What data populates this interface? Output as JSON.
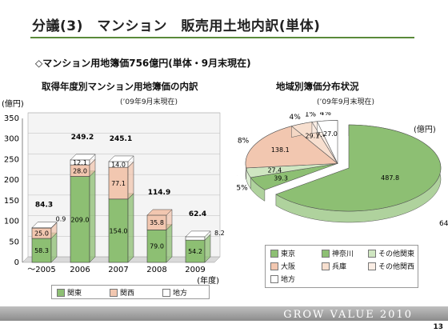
{
  "header": {
    "title": "分議(3)　マンション　販売用土地内訳(単体)",
    "summary": "◇マンション用地簿価756億円(単体・9月末現在)"
  },
  "footer": {
    "brand": "GROW VALUE 2010",
    "page": "13"
  },
  "colors": {
    "kanto": "#8dbf73",
    "kansai": "#f2c7b0",
    "chiho": "#ffffff",
    "accent": "#5a8a3a"
  },
  "chart_data": [
    {
      "type": "bar",
      "stacked": true,
      "title": "取得年度別マンション用地簿価の内訳",
      "note": "(’09年9月末現在)",
      "ylabel": "(億円)",
      "xlabel": "(年度)",
      "ylim": [
        0,
        350
      ],
      "yticks": [
        0,
        50,
        100,
        150,
        200,
        250,
        300,
        350
      ],
      "categories": [
        "〜2005",
        "2006",
        "2007",
        "2008",
        "2009"
      ],
      "series": [
        {
          "name": "関東",
          "values": [
            58.3,
            209.0,
            154.0,
            79.0,
            54.2
          ],
          "labels": [
            "58.3",
            "209.0",
            "154.0",
            "79.0",
            "54.2"
          ]
        },
        {
          "name": "関西",
          "values": [
            25.0,
            28.0,
            77.1,
            35.8,
            0
          ],
          "labels": [
            "25.0",
            "28.0",
            "77.1",
            "35.8",
            ""
          ]
        },
        {
          "name": "地方",
          "values": [
            0.9,
            12.1,
            14.0,
            0,
            8.2
          ],
          "labels": [
            "0.9",
            "12.1",
            "14.0",
            "",
            "8.2"
          ]
        }
      ],
      "totals": [
        84.3,
        249.2,
        245.1,
        114.9,
        62.4
      ],
      "total_labels": [
        "84.3",
        "249.2",
        "245.1",
        "114.9",
        "62.4"
      ],
      "legend_position": "bottom"
    },
    {
      "type": "pie",
      "title": "地域別簿価分布状況",
      "note": "(’09年9月末現在)",
      "unit": "(億円)",
      "slices": [
        {
          "name": "東京",
          "value": 487.8,
          "label": "487.8",
          "pct": "64%"
        },
        {
          "name": "神奈川",
          "value": 39.3,
          "label": "39.3",
          "pct": "5%"
        },
        {
          "name": "その他関東",
          "value": 27.4,
          "label": "27.4",
          "pct": "4%"
        },
        {
          "name": "大阪",
          "value": 138.1,
          "label": "138.1",
          "pct": "18%"
        },
        {
          "name": "兵庫",
          "value": 29.1,
          "label": "29.1",
          "pct": "4%"
        },
        {
          "name": "その他関西",
          "value": 7.0,
          "label": "7.0",
          "pct": "1%"
        },
        {
          "name": "地方",
          "value": 27.0,
          "label": "27.0",
          "pct": "4%"
        }
      ],
      "slice_colors": [
        "#8dbf73",
        "#8dbf73",
        "#cfe6c1",
        "#f2c7b0",
        "#f7dfcf",
        "#fbeee5",
        "#ffffff"
      ],
      "legend_position": "bottom-right"
    }
  ]
}
